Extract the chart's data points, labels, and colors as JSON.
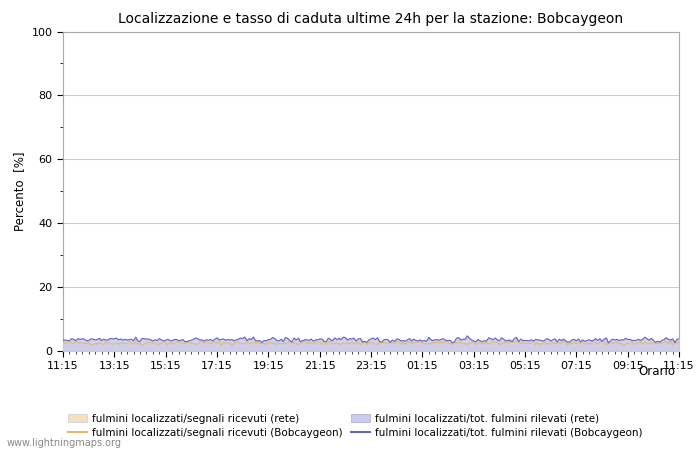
{
  "title": "Localizzazione e tasso di caduta ultime 24h per la stazione: Bobcaygeon",
  "ylabel": "Percento  [%]",
  "watermark": "www.lightningmaps.org",
  "ylim": [
    0,
    100
  ],
  "yticks": [
    0,
    20,
    40,
    60,
    80,
    100
  ],
  "yticks_minor": [
    10,
    30,
    50,
    70,
    90
  ],
  "xtick_labels": [
    "11:15",
    "13:15",
    "15:15",
    "17:15",
    "19:15",
    "21:15",
    "23:15",
    "01:15",
    "03:15",
    "05:15",
    "07:15",
    "09:15",
    "11:15"
  ],
  "n_points": 289,
  "fill_rete_color": "#f5dfc0",
  "fill_bobcaygeon_color": "#c8ccee",
  "line_rete_color": "#e8b86d",
  "line_bobcaygeon_color": "#6666bb",
  "background_color": "#ffffff",
  "plot_bg_color": "#ffffff",
  "grid_color": "#cccccc",
  "legend_labels": [
    "fulmini localizzati/segnali ricevuti (rete)",
    "fulmini localizzati/segnali ricevuti (Bobcaygeon)",
    "fulmini localizzati/tot. fulmini rilevati (rete)",
    "fulmini localizzati/tot. fulmini rilevati (Bobcaygeon)"
  ],
  "orario_label": "Orario",
  "title_fontsize": 10,
  "label_fontsize": 8.5,
  "tick_fontsize": 8,
  "legend_fontsize": 7.5
}
